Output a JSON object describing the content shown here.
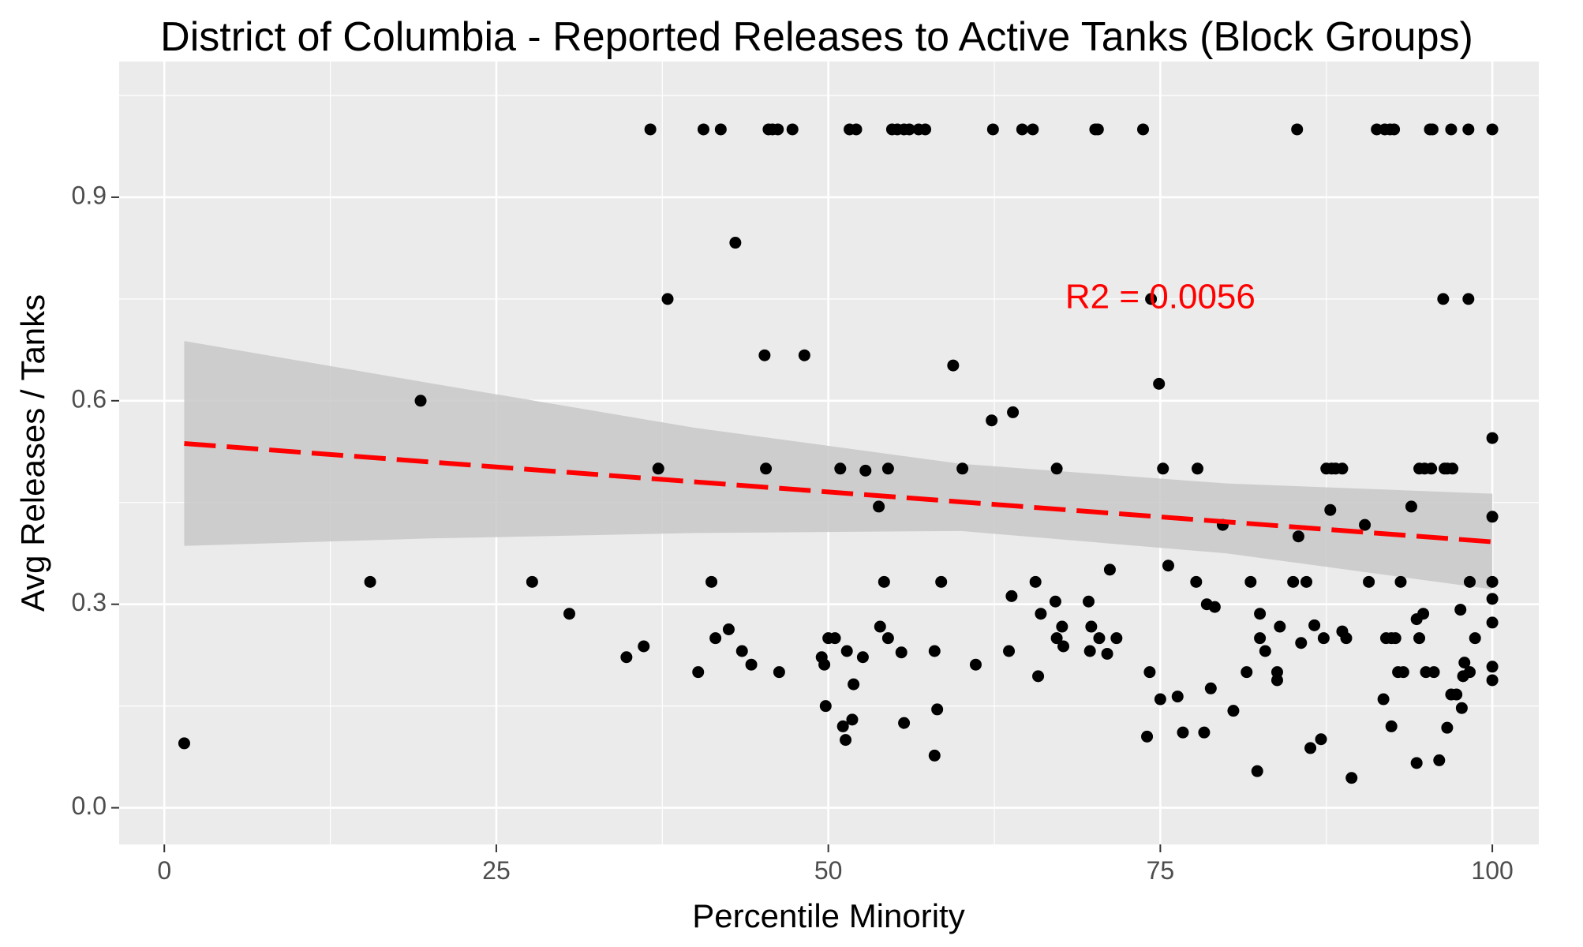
{
  "chart_data": {
    "type": "scatter",
    "title": "District of Columbia - Reported Releases to Active Tanks (Block Groups)",
    "xlabel": "Percentile Minority",
    "ylabel": "Avg Releases / Tanks",
    "xlim": [
      -3.4,
      103.5
    ],
    "ylim": [
      -0.054,
      1.1
    ],
    "x_ticks": [
      0,
      25,
      50,
      75,
      100
    ],
    "x_tick_labels": [
      "0",
      "25",
      "50",
      "75",
      "100"
    ],
    "y_ticks": [
      0.0,
      0.3,
      0.6,
      0.9
    ],
    "y_tick_labels": [
      "0.0",
      "0.3",
      "0.6",
      "0.9"
    ],
    "grid": true,
    "legend": "none",
    "annotation": {
      "text": "R2 = 0.0056",
      "x": 75,
      "y": 0.75,
      "color": "#ff0000"
    },
    "trend_line": {
      "style": "dashed",
      "color": "#ff0000",
      "x": [
        1.5,
        100
      ],
      "y": [
        0.537,
        0.392
      ]
    },
    "confidence_band": {
      "color": "#c8c8c8",
      "x": [
        1.5,
        20,
        40,
        60,
        80,
        100
      ],
      "upper": [
        0.688,
        0.626,
        0.56,
        0.507,
        0.478,
        0.463
      ],
      "lower": [
        0.386,
        0.397,
        0.405,
        0.408,
        0.375,
        0.322
      ]
    },
    "points": [
      [
        1.5,
        0.095
      ],
      [
        15.5,
        0.333
      ],
      [
        19.3,
        0.6
      ],
      [
        27.7,
        0.333
      ],
      [
        30.5,
        0.286
      ],
      [
        34.8,
        0.222
      ],
      [
        36.1,
        0.238
      ],
      [
        36.6,
        1.0
      ],
      [
        37.2,
        0.5
      ],
      [
        37.9,
        0.75
      ],
      [
        40.2,
        0.2
      ],
      [
        40.6,
        1.0
      ],
      [
        41.2,
        0.333
      ],
      [
        41.5,
        0.25
      ],
      [
        41.9,
        1.0
      ],
      [
        42.5,
        0.263
      ],
      [
        43.0,
        0.833
      ],
      [
        43.5,
        0.231
      ],
      [
        44.2,
        0.211
      ],
      [
        45.2,
        0.667
      ],
      [
        45.3,
        0.5
      ],
      [
        45.5,
        1.0
      ],
      [
        45.8,
        1.0
      ],
      [
        46.2,
        1.0
      ],
      [
        46.3,
        0.2
      ],
      [
        47.3,
        1.0
      ],
      [
        48.2,
        0.667
      ],
      [
        49.5,
        0.222
      ],
      [
        49.7,
        0.211
      ],
      [
        49.8,
        0.15
      ],
      [
        50.0,
        0.25
      ],
      [
        50.5,
        0.25
      ],
      [
        50.9,
        0.5
      ],
      [
        51.1,
        0.12
      ],
      [
        51.3,
        0.1
      ],
      [
        51.4,
        0.231
      ],
      [
        51.6,
        1.0
      ],
      [
        51.8,
        0.13
      ],
      [
        51.9,
        0.182
      ],
      [
        52.1,
        1.0
      ],
      [
        52.6,
        0.222
      ],
      [
        52.8,
        0.497
      ],
      [
        53.8,
        0.444
      ],
      [
        53.9,
        0.267
      ],
      [
        54.2,
        0.333
      ],
      [
        54.5,
        0.5
      ],
      [
        54.5,
        0.25
      ],
      [
        54.8,
        1.0
      ],
      [
        55.2,
        1.0
      ],
      [
        55.5,
        0.229
      ],
      [
        55.7,
        1.0
      ],
      [
        55.7,
        0.125
      ],
      [
        56.1,
        1.0
      ],
      [
        56.8,
        1.0
      ],
      [
        57.3,
        1.0
      ],
      [
        58.0,
        0.231
      ],
      [
        58.0,
        0.077
      ],
      [
        58.2,
        0.145
      ],
      [
        58.5,
        0.333
      ],
      [
        59.4,
        0.652
      ],
      [
        60.1,
        0.5
      ],
      [
        61.1,
        0.211
      ],
      [
        62.3,
        0.571
      ],
      [
        62.4,
        1.0
      ],
      [
        63.6,
        0.231
      ],
      [
        63.8,
        0.312
      ],
      [
        63.9,
        0.583
      ],
      [
        64.6,
        1.0
      ],
      [
        65.4,
        1.0
      ],
      [
        65.6,
        0.333
      ],
      [
        65.8,
        0.194
      ],
      [
        66.0,
        0.286
      ],
      [
        67.1,
        0.304
      ],
      [
        67.2,
        0.5
      ],
      [
        67.2,
        0.25
      ],
      [
        67.6,
        0.267
      ],
      [
        67.7,
        0.238
      ],
      [
        69.6,
        0.304
      ],
      [
        69.7,
        0.231
      ],
      [
        69.8,
        0.267
      ],
      [
        70.1,
        1.0
      ],
      [
        70.3,
        1.0
      ],
      [
        70.4,
        0.25
      ],
      [
        71.2,
        0.351
      ],
      [
        71.0,
        0.227
      ],
      [
        71.7,
        0.25
      ],
      [
        73.7,
        1.0
      ],
      [
        74.0,
        0.105
      ],
      [
        74.2,
        0.2
      ],
      [
        74.3,
        0.75
      ],
      [
        74.9,
        0.625
      ],
      [
        75.0,
        0.16
      ],
      [
        75.2,
        0.5
      ],
      [
        75.6,
        0.357
      ],
      [
        76.3,
        0.164
      ],
      [
        76.7,
        0.111
      ],
      [
        77.7,
        0.333
      ],
      [
        77.8,
        0.5
      ],
      [
        78.3,
        0.111
      ],
      [
        78.5,
        0.3
      ],
      [
        78.8,
        0.176
      ],
      [
        79.1,
        0.296
      ],
      [
        79.7,
        0.417
      ],
      [
        80.5,
        0.143
      ],
      [
        81.5,
        0.2
      ],
      [
        81.8,
        0.333
      ],
      [
        82.3,
        0.054
      ],
      [
        82.5,
        0.25
      ],
      [
        82.5,
        0.286
      ],
      [
        82.9,
        0.231
      ],
      [
        83.8,
        0.2
      ],
      [
        83.8,
        0.188
      ],
      [
        84.0,
        0.267
      ],
      [
        85.0,
        0.333
      ],
      [
        85.3,
        1.0
      ],
      [
        85.4,
        0.4
      ],
      [
        85.6,
        0.243
      ],
      [
        86.0,
        0.333
      ],
      [
        86.3,
        0.088
      ],
      [
        86.6,
        0.269
      ],
      [
        87.1,
        0.101
      ],
      [
        87.3,
        0.25
      ],
      [
        87.5,
        0.5
      ],
      [
        87.8,
        0.439
      ],
      [
        87.9,
        0.5
      ],
      [
        88.2,
        0.5
      ],
      [
        88.7,
        0.5
      ],
      [
        88.7,
        0.26
      ],
      [
        89.0,
        0.25
      ],
      [
        89.4,
        0.044
      ],
      [
        90.4,
        0.417
      ],
      [
        90.7,
        0.333
      ],
      [
        91.3,
        1.0
      ],
      [
        91.8,
        0.16
      ],
      [
        91.9,
        1.0
      ],
      [
        92.0,
        0.25
      ],
      [
        92.3,
        1.0
      ],
      [
        92.4,
        0.12
      ],
      [
        92.4,
        0.25
      ],
      [
        92.6,
        1.0
      ],
      [
        92.7,
        0.25
      ],
      [
        92.9,
        0.2
      ],
      [
        93.1,
        0.333
      ],
      [
        93.3,
        0.2
      ],
      [
        93.9,
        0.444
      ],
      [
        94.3,
        0.066
      ],
      [
        94.3,
        0.278
      ],
      [
        94.5,
        0.25
      ],
      [
        94.5,
        0.5
      ],
      [
        94.8,
        0.286
      ],
      [
        94.9,
        0.5
      ],
      [
        95.0,
        0.2
      ],
      [
        95.3,
        1.0
      ],
      [
        95.4,
        0.5
      ],
      [
        95.5,
        1.0
      ],
      [
        95.6,
        0.2
      ],
      [
        96.0,
        0.07
      ],
      [
        96.3,
        0.75
      ],
      [
        96.4,
        0.5
      ],
      [
        96.6,
        0.118
      ],
      [
        96.6,
        0.5
      ],
      [
        96.9,
        1.0
      ],
      [
        96.9,
        0.167
      ],
      [
        97.0,
        0.5
      ],
      [
        97.3,
        0.167
      ],
      [
        97.6,
        0.292
      ],
      [
        97.7,
        0.147
      ],
      [
        97.8,
        0.194
      ],
      [
        97.9,
        0.214
      ],
      [
        98.2,
        0.75
      ],
      [
        98.2,
        1.0
      ],
      [
        98.3,
        0.2
      ],
      [
        98.3,
        0.333
      ],
      [
        98.7,
        0.25
      ],
      [
        100,
        1.0
      ],
      [
        100,
        0.545
      ],
      [
        100,
        0.429
      ],
      [
        100,
        0.333
      ],
      [
        100,
        0.308
      ],
      [
        100,
        0.273
      ],
      [
        100,
        0.208
      ],
      [
        100,
        0.188
      ]
    ]
  }
}
